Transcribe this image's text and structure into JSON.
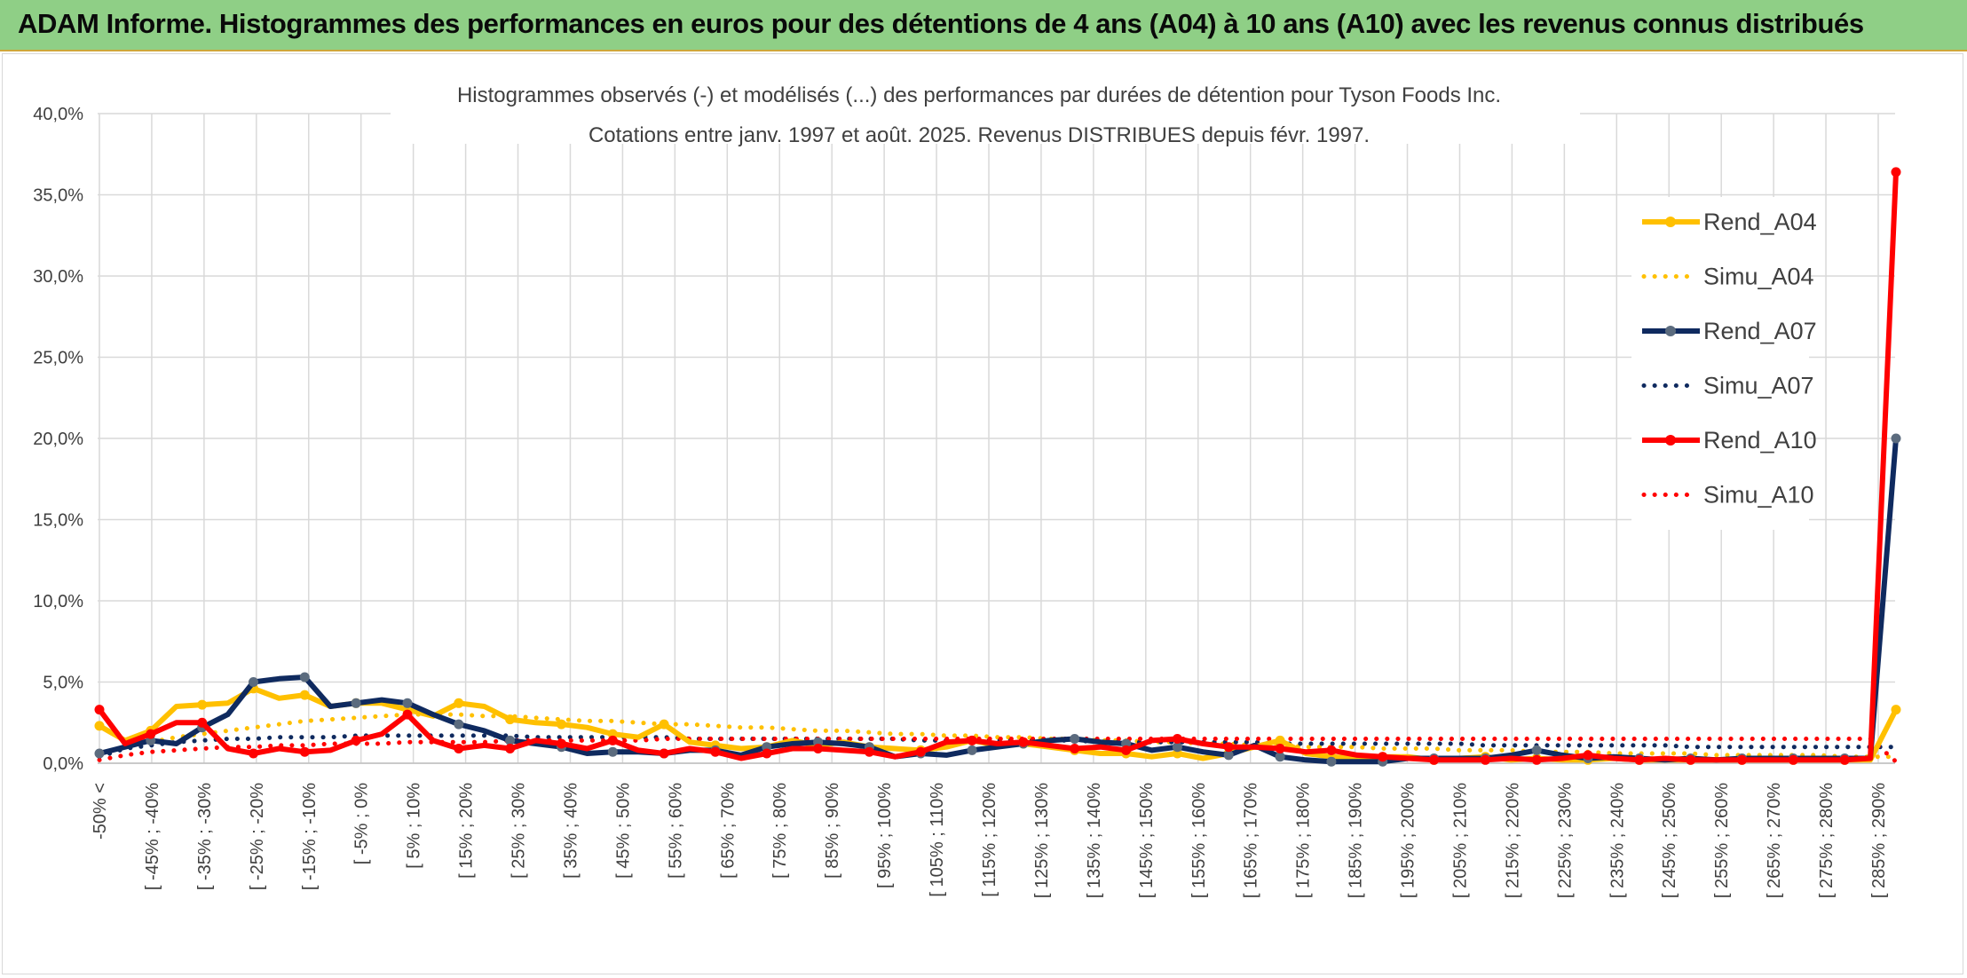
{
  "banner": {
    "title": "ADAM Informe. Histogrammes des performances en euros pour des détentions de 4 ans (A04) à 10 ans (A10) avec les revenus connus distribués"
  },
  "colors": {
    "banner_bg": "#8fcf86",
    "A04": "#ffc000",
    "A07": "#0f2a5f",
    "A07_marker": "#5b6b7e",
    "A10": "#ff0000",
    "grid": "#d9d9d9"
  },
  "chart_data": {
    "type": "line",
    "title": "Histogrammes observés (-) et modélisés (...) des performances par durées de détention pour Tyson Foods Inc.",
    "subtitle": "Cotations entre janv. 1997 et août. 2025. Revenus DISTRIBUES depuis févr. 1997.",
    "xlabel": "",
    "ylabel": "",
    "ylim": [
      0,
      40
    ],
    "y_ticks": [
      "0,0%",
      "5,0%",
      "10,0%",
      "15,0%",
      "20,0%",
      "25,0%",
      "30,0%",
      "35,0%",
      "40,0%"
    ],
    "grid": true,
    "legend_position": "right",
    "x_tick_labels": [
      "-50% <",
      "[ -45% ; -40%",
      "[ -35% ; -30%",
      "[ -25% ; -20%",
      "[ -15% ; -10%",
      "[ -5% ; 0%",
      "[ 5% ; 10%",
      "[ 15% ; 20%",
      "[ 25% ; 30%",
      "[ 35% ; 40%",
      "[ 45% ; 50%",
      "[ 55% ; 60%",
      "[ 65% ; 70%",
      "[ 75% ; 80%",
      "[ 85% ; 90%",
      "[ 95% ; 100%",
      "[ 105% ; 110%",
      "[ 115% ; 120%",
      "[ 125% ; 130%",
      "[ 135% ; 140%",
      "[ 145% ; 150%",
      "[ 155% ; 160%",
      "[ 165% ; 170%",
      "[ 175% ; 180%",
      "[ 185% ; 190%",
      "[ 195% ; 200%",
      "[ 205% ; 210%",
      "[ 215% ; 220%",
      "[ 225% ; 230%",
      "[ 235% ; 240%",
      "[ 245% ; 250%",
      "[ 255% ; 260%",
      "[ 265% ; 270%",
      "[ 275% ; 280%",
      "[ 285% ; 290%"
    ],
    "series": [
      {
        "name": "Rend_A04",
        "style": "solid",
        "color": "#ffc000",
        "values": [
          2.3,
          1.4,
          2.0,
          3.5,
          3.6,
          3.7,
          4.6,
          4.0,
          4.2,
          3.5,
          3.7,
          3.7,
          3.3,
          2.9,
          3.7,
          3.5,
          2.7,
          2.5,
          2.4,
          2.2,
          1.8,
          1.6,
          2.4,
          1.3,
          1.1,
          0.9,
          1.0,
          1.4,
          1.1,
          1.3,
          1.0,
          0.9,
          0.8,
          1.0,
          1.4,
          1.1,
          1.2,
          1.0,
          0.8,
          0.6,
          0.6,
          0.4,
          0.6,
          0.3,
          0.6,
          1.0,
          1.4,
          0.6,
          0.4,
          0.3,
          0.4,
          0.4,
          0.2,
          0.3,
          0.4,
          0.2,
          0.3,
          0.2,
          0.2,
          0.3,
          0.2,
          0.2,
          0.2,
          0.2,
          0.2,
          0.2,
          0.2,
          0.2,
          0.2,
          0.2,
          3.3
        ]
      },
      {
        "name": "Simu_A04",
        "style": "dotted",
        "color": "#ffc000",
        "values": [
          0.5,
          1.0,
          1.3,
          1.6,
          1.8,
          2.0,
          2.2,
          2.4,
          2.6,
          2.7,
          2.8,
          2.9,
          3.0,
          3.0,
          3.0,
          2.9,
          2.9,
          2.8,
          2.7,
          2.6,
          2.6,
          2.5,
          2.4,
          2.4,
          2.3,
          2.2,
          2.2,
          2.1,
          2.0,
          2.0,
          1.9,
          1.8,
          1.8,
          1.7,
          1.7,
          1.6,
          1.6,
          1.5,
          1.5,
          1.4,
          1.4,
          1.3,
          1.3,
          1.2,
          1.2,
          1.1,
          1.1,
          1.0,
          1.0,
          1.0,
          0.9,
          0.9,
          0.9,
          0.8,
          0.8,
          0.8,
          0.7,
          0.7,
          0.7,
          0.6,
          0.6,
          0.6,
          0.6,
          0.5,
          0.5,
          0.5,
          0.5,
          0.5,
          0.4,
          0.4,
          0.4
        ]
      },
      {
        "name": "Rend_A07",
        "style": "solid",
        "color": "#0f2a5f",
        "values": [
          0.6,
          1.0,
          1.4,
          1.2,
          2.2,
          3.0,
          5.0,
          5.2,
          5.3,
          3.5,
          3.7,
          3.9,
          3.7,
          3.0,
          2.4,
          2.0,
          1.4,
          1.2,
          1.0,
          0.6,
          0.7,
          0.7,
          0.6,
          0.8,
          0.8,
          0.5,
          1.0,
          1.2,
          1.3,
          1.2,
          1.0,
          0.4,
          0.6,
          0.5,
          0.8,
          1.0,
          1.2,
          1.4,
          1.5,
          1.3,
          1.2,
          0.8,
          1.0,
          0.7,
          0.5,
          1.1,
          0.4,
          0.2,
          0.1,
          0.1,
          0.1,
          0.3,
          0.3,
          0.3,
          0.3,
          0.5,
          0.8,
          0.5,
          0.3,
          0.4,
          0.3,
          0.2,
          0.3,
          0.2,
          0.3,
          0.3,
          0.3,
          0.3,
          0.3,
          0.3,
          20.0
        ]
      },
      {
        "name": "Simu_A07",
        "style": "dotted",
        "color": "#0f2a5f",
        "values": [
          0.4,
          0.9,
          1.1,
          1.3,
          1.4,
          1.5,
          1.5,
          1.6,
          1.6,
          1.6,
          1.7,
          1.7,
          1.7,
          1.7,
          1.7,
          1.7,
          1.7,
          1.6,
          1.6,
          1.6,
          1.6,
          1.6,
          1.6,
          1.5,
          1.5,
          1.5,
          1.5,
          1.5,
          1.5,
          1.5,
          1.5,
          1.5,
          1.4,
          1.4,
          1.4,
          1.4,
          1.4,
          1.4,
          1.4,
          1.3,
          1.3,
          1.3,
          1.3,
          1.3,
          1.3,
          1.3,
          1.2,
          1.2,
          1.2,
          1.2,
          1.2,
          1.2,
          1.2,
          1.2,
          1.1,
          1.1,
          1.1,
          1.1,
          1.1,
          1.1,
          1.1,
          1.1,
          1.0,
          1.0,
          1.0,
          1.0,
          1.0,
          1.0,
          1.0,
          1.0,
          1.0
        ]
      },
      {
        "name": "Rend_A10",
        "style": "solid",
        "color": "#ff0000",
        "values": [
          3.3,
          1.2,
          1.8,
          2.5,
          2.5,
          0.9,
          0.6,
          0.9,
          0.7,
          0.8,
          1.4,
          1.8,
          3.0,
          1.4,
          0.9,
          1.1,
          0.9,
          1.4,
          1.2,
          0.9,
          1.4,
          0.8,
          0.6,
          0.9,
          0.7,
          0.3,
          0.6,
          0.9,
          0.9,
          0.8,
          0.7,
          0.4,
          0.7,
          1.3,
          1.4,
          1.2,
          1.3,
          1.1,
          0.9,
          1.0,
          0.8,
          1.4,
          1.5,
          1.2,
          1.0,
          1.0,
          0.9,
          0.7,
          0.8,
          0.5,
          0.4,
          0.3,
          0.2,
          0.2,
          0.2,
          0.3,
          0.2,
          0.3,
          0.5,
          0.3,
          0.2,
          0.3,
          0.2,
          0.2,
          0.2,
          0.2,
          0.2,
          0.2,
          0.2,
          0.3,
          36.4
        ]
      },
      {
        "name": "Simu_A10",
        "style": "dotted",
        "color": "#ff0000",
        "values": [
          0.2,
          0.5,
          0.7,
          0.8,
          0.9,
          1.0,
          1.0,
          1.1,
          1.1,
          1.2,
          1.2,
          1.2,
          1.3,
          1.3,
          1.3,
          1.3,
          1.4,
          1.4,
          1.4,
          1.4,
          1.4,
          1.4,
          1.5,
          1.5,
          1.5,
          1.5,
          1.5,
          1.5,
          1.5,
          1.5,
          1.5,
          1.5,
          1.5,
          1.5,
          1.5,
          1.5,
          1.5,
          1.5,
          1.5,
          1.5,
          1.5,
          1.5,
          1.5,
          1.5,
          1.5,
          1.5,
          1.5,
          1.5,
          1.5,
          1.5,
          1.5,
          1.5,
          1.5,
          1.5,
          1.5,
          1.5,
          1.5,
          1.5,
          1.5,
          1.5,
          1.5,
          1.5,
          1.5,
          1.5,
          1.5,
          1.5,
          1.5,
          1.5,
          1.5,
          1.5,
          0.1
        ]
      }
    ]
  }
}
